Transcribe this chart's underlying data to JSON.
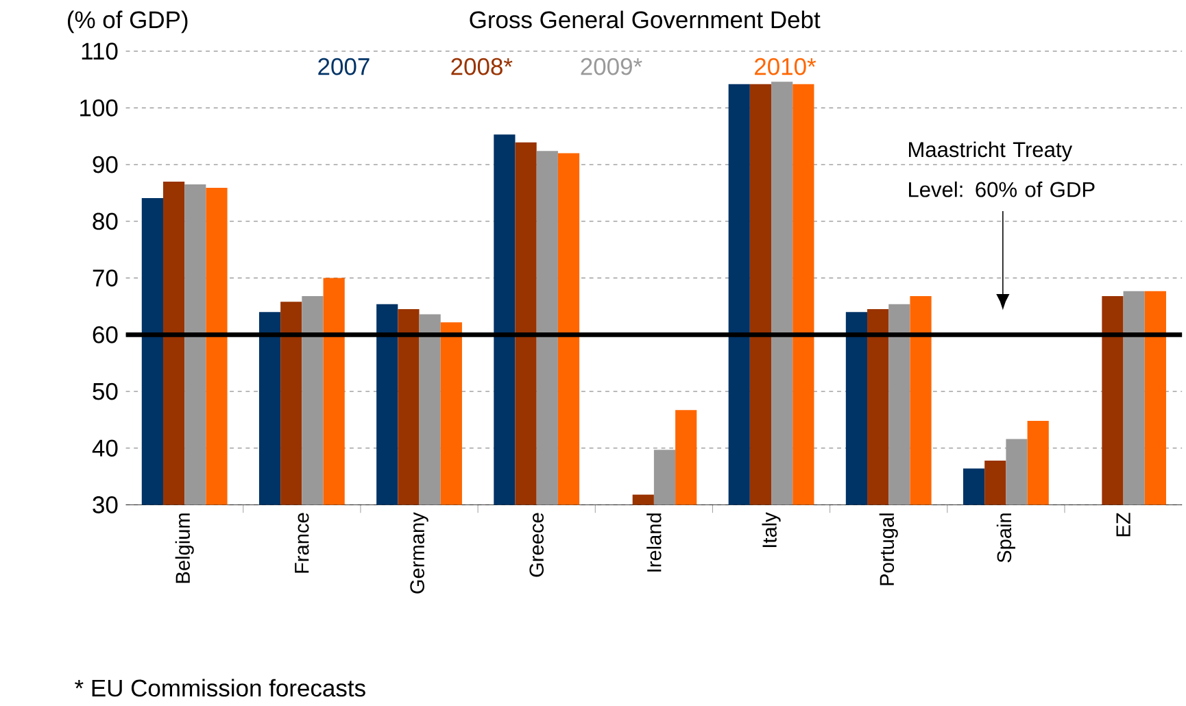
{
  "chart_data": {
    "type": "bar",
    "title": "Gross General Government Debt",
    "categories": [
      "Belgium",
      "France",
      "Germany",
      "Greece",
      "Ireland",
      "Italy",
      "Portugal",
      "Spain",
      "EZ"
    ],
    "series": [
      {
        "name": "2007",
        "color": "#003366",
        "values": [
          84.1,
          64.0,
          65.4,
          95.3,
          null,
          104.2,
          64.0,
          36.4,
          null
        ]
      },
      {
        "name": "2008*",
        "color": "#993300",
        "values": [
          87.0,
          65.8,
          64.5,
          93.9,
          31.8,
          104.2,
          64.5,
          37.8,
          66.8
        ]
      },
      {
        "name": "2009*",
        "color": "#999999",
        "values": [
          86.5,
          66.8,
          63.6,
          92.4,
          39.7,
          104.6,
          65.4,
          41.6,
          67.7
        ]
      },
      {
        "name": "2010*",
        "color": "#ff6600",
        "values": [
          85.9,
          70.0,
          62.2,
          92.0,
          46.7,
          104.2,
          66.8,
          44.8,
          67.7
        ]
      }
    ],
    "ylim": [
      30,
      110
    ],
    "yticks": [
      30,
      40,
      50,
      60,
      70,
      80,
      90,
      100,
      110
    ],
    "grid": "y",
    "legend": "top",
    "ref_lines": [
      {
        "axis": "y",
        "value": 60,
        "label": "Maastricht Treaty Level: 60% of GDP",
        "color": "#000000"
      }
    ],
    "annotations": [
      "(% of GDP)",
      "* EU Commission forecasts"
    ]
  }
}
